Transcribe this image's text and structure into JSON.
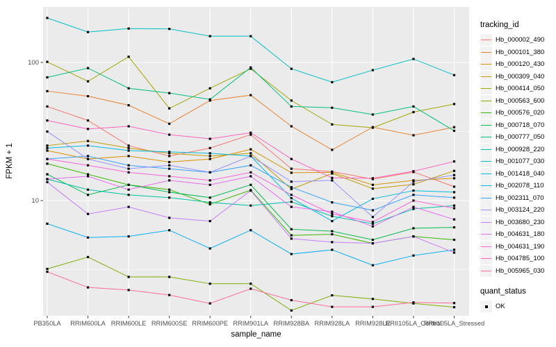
{
  "chart_data": {
    "type": "line",
    "title": "",
    "xlabel": "sample_name",
    "ylabel": "FPKM + 1",
    "y_scale": "log10",
    "y_major_ticks": [
      100,
      10
    ],
    "y_minor_gridlines": [
      31.62,
      3.162
    ],
    "grid": true,
    "legend_position": "right",
    "legend_title": "tracking_id",
    "point_legend": {
      "title": "quant_status",
      "items": [
        {
          "label": "OK",
          "marker": "black-square"
        }
      ]
    },
    "x_categories": [
      "PB350LA",
      "RRIM600LA",
      "RRIM600LE",
      "RRIM600SE",
      "RRIM600PE",
      "RRIM901LA",
      "RRIM928BA",
      "RRIM928LA",
      "RRIM928LE",
      "RRII105LA_Control",
      "RRII105LA_Stressed"
    ],
    "series": [
      {
        "name": "Hb_000002_490",
        "color": "#F8766D",
        "values": [
          48,
          38,
          25,
          21,
          24,
          30,
          17,
          16.2,
          14.3,
          16.1,
          12.6
        ]
      },
      {
        "name": "Hb_000101_380",
        "color": "#EA8331",
        "values": [
          62,
          57,
          49,
          36,
          53,
          58,
          34.5,
          23.3,
          34,
          29.7,
          34
        ]
      },
      {
        "name": "Hb_000120_430",
        "color": "#D89000",
        "values": [
          23,
          20,
          21,
          19,
          20,
          23.5,
          15.9,
          16,
          13,
          14,
          14.5
        ]
      },
      {
        "name": "Hb_000309_040",
        "color": "#C09B00",
        "values": [
          25,
          27,
          24,
          22,
          21,
          22,
          12.1,
          15.7,
          12.2,
          13.1,
          16.4
        ]
      },
      {
        "name": "Hb_000414_050",
        "color": "#A3A500",
        "values": [
          101,
          73,
          110,
          46.5,
          65,
          90,
          53,
          35.6,
          33.7,
          43.7,
          50
        ]
      },
      {
        "name": "Hb_000563_600",
        "color": "#7CAE00",
        "values": [
          3.2,
          3.9,
          2.8,
          2.8,
          2.5,
          2.5,
          1.6,
          2.06,
          1.94,
          1.8,
          1.69
        ]
      },
      {
        "name": "Hb_000576_020",
        "color": "#39B600",
        "values": [
          18.5,
          15.5,
          13,
          12,
          9.4,
          11.9,
          5.6,
          5.7,
          4.9,
          5.5,
          5.2
        ]
      },
      {
        "name": "Hb_000718_070",
        "color": "#00BB4E",
        "values": [
          15.5,
          11,
          13,
          11.5,
          10.5,
          13,
          6.2,
          6,
          5.2,
          6.3,
          6.4
        ]
      },
      {
        "name": "Hb_000777_050",
        "color": "#00BF7D",
        "values": [
          78,
          91,
          65,
          60,
          54,
          92,
          48,
          47,
          42,
          48,
          32
        ]
      },
      {
        "name": "Hb_000928_220",
        "color": "#00C1A3",
        "values": [
          14.3,
          12,
          11,
          10.5,
          9.7,
          9.2,
          9.8,
          7.7,
          6.8,
          8.7,
          9.2
        ]
      },
      {
        "name": "Hb_001077_030",
        "color": "#00BFC4",
        "values": [
          210,
          166,
          176,
          175,
          155,
          155,
          90,
          72,
          88,
          106,
          81
        ]
      },
      {
        "name": "Hb_001418_040",
        "color": "#00BAE0",
        "values": [
          24,
          25,
          23,
          22.5,
          22,
          21,
          10.4,
          7.1,
          10.3,
          11.8,
          11.5
        ]
      },
      {
        "name": "Hb_002078_110",
        "color": "#00B0F6",
        "values": [
          6.8,
          5.4,
          5.5,
          6.1,
          4.5,
          6.1,
          4.1,
          4.4,
          3.4,
          4,
          4.4
        ]
      },
      {
        "name": "Hb_002311_070",
        "color": "#35A2FF",
        "values": [
          20,
          21,
          18,
          17,
          16,
          18,
          12.5,
          9.7,
          8.5,
          11,
          10.5
        ]
      },
      {
        "name": "Hb_003124_220",
        "color": "#9590FF",
        "values": [
          31.6,
          20,
          17,
          18,
          16,
          21,
          13.7,
          14,
          7.6,
          13.7,
          15.3
        ]
      },
      {
        "name": "Hb_003680_230",
        "color": "#C77CFF",
        "values": [
          13.6,
          8,
          9,
          7.5,
          7.1,
          11.8,
          5.3,
          5,
          4.9,
          5.5,
          4.2
        ]
      },
      {
        "name": "Hb_004631_180",
        "color": "#E76BF3",
        "values": [
          14.3,
          15,
          12,
          14,
          13,
          15,
          9,
          8.3,
          6.5,
          9,
          7.3
        ]
      },
      {
        "name": "Hb_004631_190",
        "color": "#FA62DB",
        "values": [
          20,
          18,
          16,
          15,
          14,
          16,
          11,
          8,
          7,
          10,
          8.8
        ]
      },
      {
        "name": "Hb_004785_100",
        "color": "#FF62BC",
        "values": [
          38,
          33,
          34.5,
          30,
          28,
          31,
          20,
          14.6,
          14.5,
          16.3,
          19.2
        ]
      },
      {
        "name": "Hb_005965_030",
        "color": "#FF6A98",
        "values": [
          3.05,
          2.35,
          2.25,
          2.07,
          1.8,
          2.3,
          1.9,
          1.7,
          1.7,
          1.83,
          1.81
        ]
      }
    ],
    "colors": {
      "panel_bg": "#EBEBEB",
      "gridline": "#FFFFFF",
      "axis_text": "#4D4D4D",
      "axis_title": "#000000",
      "tick_mark": "#333333",
      "marker": "#000000",
      "legend_key_bg": "#F2F2F2"
    }
  }
}
